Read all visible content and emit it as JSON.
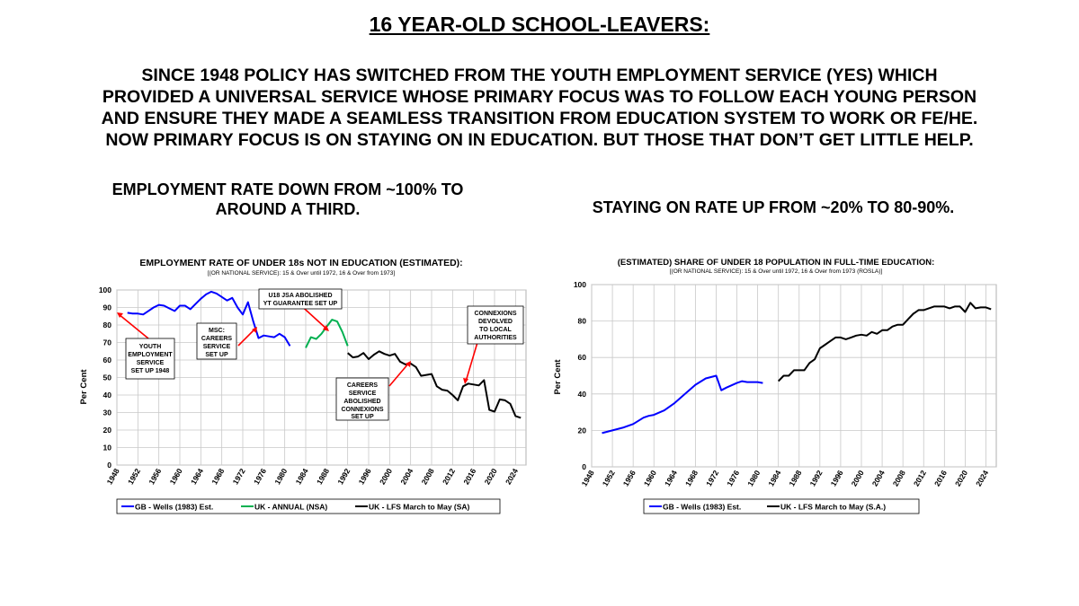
{
  "header": {
    "title": "16 YEAR-OLD SCHOOL-LEAVERS:",
    "intro_lines": [
      "SINCE 1948 POLICY HAS SWITCHED FROM THE YOUTH EMPLOYMENT SERVICE (YES) WHICH",
      "PROVIDED A UNIVERSAL SERVICE WHOSE PRIMARY FOCUS WAS TO FOLLOW EACH YOUNG PERSON",
      "AND  ENSURE THEY MADE A SEAMLESS TRANSITION FROM EDUCATION SYSTEM TO WORK OR FE/HE.",
      "NOW PRIMARY FOCUS IS ON STAYING ON IN EDUCATION. BUT THOSE THAT DON’T GET LITTLE HELP."
    ]
  },
  "left_heading": [
    "EMPLOYMENT RATE DOWN FROM ~100% TO",
    "AROUND A THIRD."
  ],
  "right_heading": [
    "STAYING ON RATE UP FROM ~20% TO 80-90%."
  ],
  "colors": {
    "blue": "#0000ff",
    "green": "#00b050",
    "black": "#000000",
    "red": "#ff0000",
    "grid": "#c8c8c8"
  },
  "chart_data": [
    {
      "type": "line",
      "title": "EMPLOYMENT RATE OF UNDER 18s NOT IN EDUCATION (ESTIMATED):",
      "subtitle": "[(OR NATIONAL SERVICE): 15 & Over until 1972, 16 & Over from 1973]",
      "xlabel": "",
      "ylabel": "Per Cent",
      "xlim": [
        1948,
        2026
      ],
      "ylim": [
        0,
        100
      ],
      "yticks": [
        0,
        10,
        20,
        30,
        40,
        50,
        60,
        70,
        80,
        90,
        100
      ],
      "xticks": [
        "1948",
        "1952",
        "1956",
        "1960",
        "1964",
        "1968",
        "1972",
        "1976",
        "1980",
        "1984",
        "1988",
        "1992",
        "1996",
        "2000",
        "2004",
        "2008",
        "2012",
        "2016",
        "2020",
        "2024"
      ],
      "grid": true,
      "legend": "bottom",
      "series": [
        {
          "name": "GB - Wells (1983) Est.",
          "color": "#0000ff",
          "x": [
            1950,
            1951,
            1952,
            1953,
            1954,
            1955,
            1956,
            1957,
            1958,
            1959,
            1960,
            1961,
            1962,
            1963,
            1964,
            1965,
            1966,
            1967,
            1968,
            1969,
            1970,
            1971,
            1972,
            1973,
            1974,
            1975,
            1976,
            1977,
            1978,
            1979,
            1980,
            1981
          ],
          "y": [
            87,
            86.5,
            86.5,
            86,
            88,
            90,
            91.5,
            91,
            89.5,
            88,
            91,
            91,
            89,
            92,
            95,
            97.5,
            99,
            98,
            96,
            94,
            95.5,
            90,
            86,
            93,
            82,
            72.5,
            74,
            73.5,
            73,
            75,
            73,
            68
          ]
        },
        {
          "name": "UK - ANNUAL (NSA)",
          "color": "#00b050",
          "x": [
            1984,
            1985,
            1986,
            1987,
            1988,
            1989,
            1990,
            1991,
            1992
          ],
          "y": [
            67,
            73,
            72,
            75,
            79,
            83,
            82,
            76,
            68
          ]
        },
        {
          "name": "UK - LFS March to May (SA)",
          "color": "#000000",
          "x": [
            1992,
            1993,
            1994,
            1995,
            1996,
            1997,
            1998,
            1999,
            2000,
            2001,
            2002,
            2003,
            2004,
            2005,
            2006,
            2007,
            2008,
            2009,
            2010,
            2011,
            2012,
            2013,
            2014,
            2015,
            2016,
            2017,
            2018,
            2019,
            2020,
            2021,
            2022,
            2023,
            2024,
            2025
          ],
          "y": [
            64,
            61.5,
            62,
            64,
            60.5,
            63,
            65,
            63.5,
            62.5,
            63.5,
            59,
            57.5,
            58,
            56,
            51,
            51.5,
            52,
            45,
            43,
            42.5,
            40,
            37,
            45,
            46.5,
            46,
            45.5,
            48.5,
            31.5,
            30.5,
            37.5,
            37,
            35,
            28,
            27
          ]
        }
      ],
      "annotations": [
        {
          "lines": [
            "YOUTH",
            "EMPLOYMENT",
            "SERVICE",
            "SET UP 1948"
          ]
        },
        {
          "lines": [
            "MSC:",
            "CAREERS",
            "SERVICE",
            "SET UP"
          ]
        },
        {
          "lines": [
            "U18 JSA ABOLISHED",
            "YT GUARANTEE SET UP"
          ]
        },
        {
          "lines": [
            "CONNEXIONS",
            "DEVOLVED",
            "TO LOCAL",
            "AUTHORITIES"
          ]
        },
        {
          "lines": [
            "CAREERS",
            "SERVICE",
            "ABOLISHED",
            "CONNEXIONS",
            "SET UP"
          ]
        }
      ]
    },
    {
      "type": "line",
      "title": "(ESTIMATED) SHARE OF UNDER 18 POPULATION IN FULL-TIME EDUCATION:",
      "subtitle": "[(OR NATIONAL SERVICE): 15 & Over until 1972, 16 & Over from 1973 (ROSLA)]",
      "xlabel": "",
      "ylabel": "Per Cent",
      "xlim": [
        1948,
        2026
      ],
      "ylim": [
        0,
        100
      ],
      "yticks": [
        0,
        20,
        40,
        60,
        80,
        100
      ],
      "xticks": [
        "1948",
        "1952",
        "1956",
        "1960",
        "1964",
        "1968",
        "1972",
        "1976",
        "1980",
        "1984",
        "1988",
        "1992",
        "1996",
        "2000",
        "2004",
        "2008",
        "2012",
        "2016",
        "2020",
        "2024"
      ],
      "grid": true,
      "legend": "bottom",
      "series": [
        {
          "name": "GB - Wells (1983) Est.",
          "color": "#0000ff",
          "x": [
            1950,
            1952,
            1954,
            1956,
            1958,
            1959,
            1960,
            1962,
            1964,
            1966,
            1968,
            1970,
            1972,
            1973,
            1974,
            1976,
            1977,
            1978,
            1980,
            1981
          ],
          "y": [
            18.5,
            20,
            21.5,
            23.5,
            27,
            28,
            28.5,
            31,
            35,
            40,
            45,
            48.5,
            50,
            42,
            43.5,
            46,
            47,
            46.5,
            46.5,
            46
          ]
        },
        {
          "name": "UK - LFS March to May (S.A.)",
          "color": "#000000",
          "x": [
            1984,
            1985,
            1986,
            1987,
            1988,
            1989,
            1990,
            1991,
            1992,
            1993,
            1994,
            1995,
            1996,
            1997,
            1998,
            1999,
            2000,
            2001,
            2002,
            2003,
            2004,
            2005,
            2006,
            2007,
            2008,
            2009,
            2010,
            2011,
            2012,
            2013,
            2014,
            2015,
            2016,
            2017,
            2018,
            2019,
            2020,
            2021,
            2022,
            2023,
            2024,
            2025
          ],
          "y": [
            47,
            50,
            50,
            53,
            53,
            53,
            57,
            59,
            65,
            67,
            69,
            71,
            71,
            70,
            71,
            72,
            72.5,
            72,
            74,
            73,
            75,
            75,
            77,
            78,
            78,
            81,
            84,
            86,
            86,
            87,
            88,
            88,
            88,
            87,
            88,
            88,
            85,
            90,
            87,
            87.5,
            87.5,
            86.5
          ]
        }
      ]
    }
  ]
}
